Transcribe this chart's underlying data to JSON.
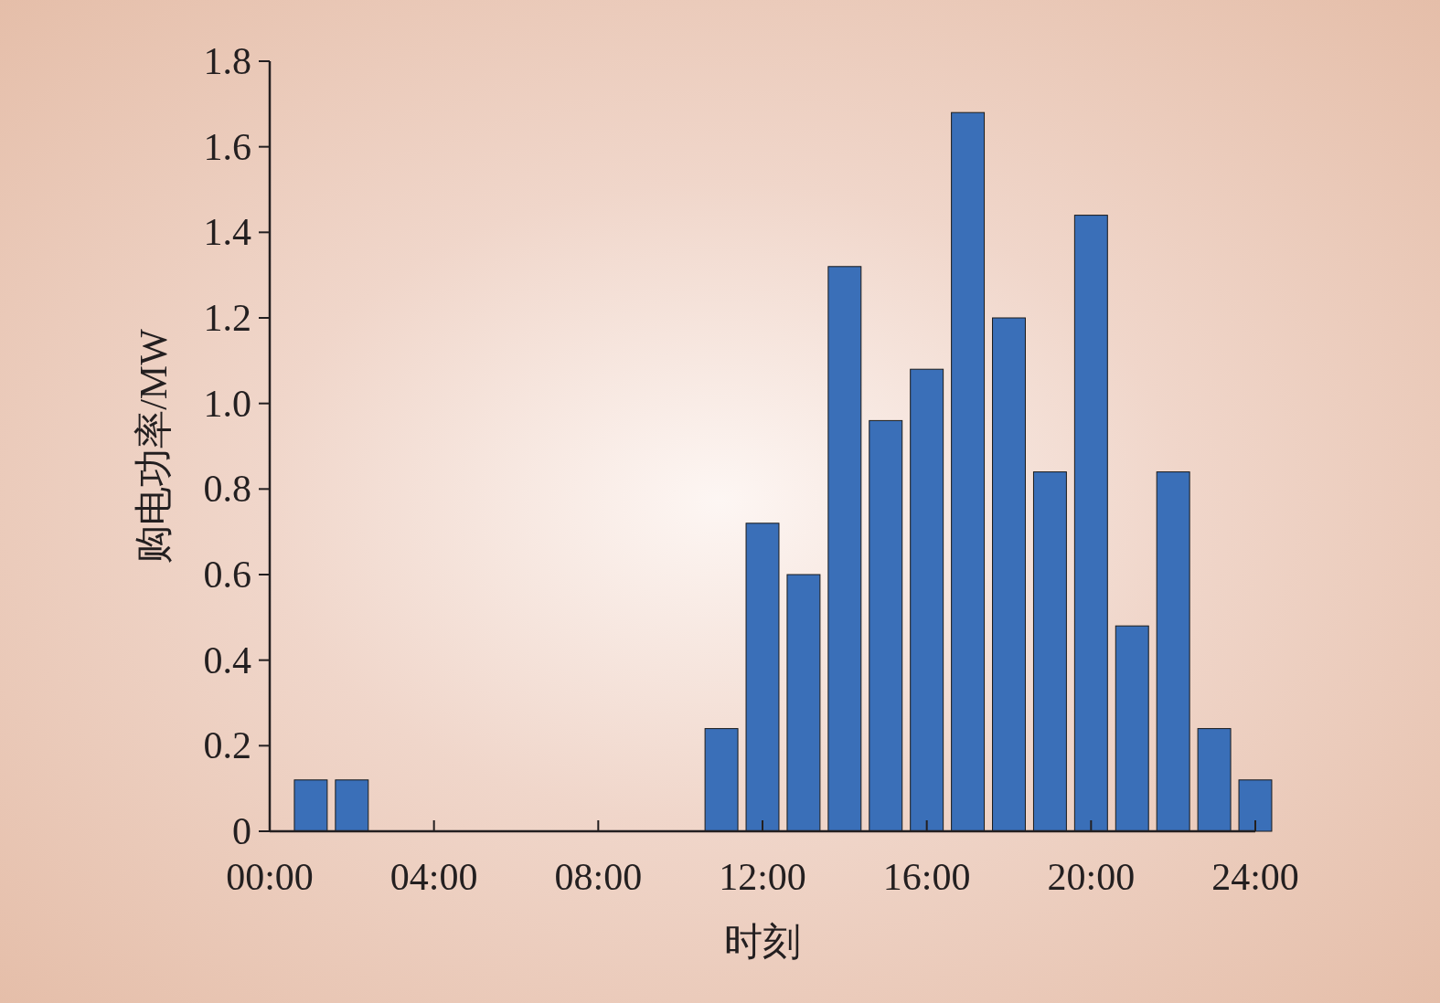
{
  "chart_data": {
    "type": "bar",
    "xlabel": "时刻",
    "ylabel": "购电功率/MW",
    "x": [
      1,
      2,
      3,
      4,
      5,
      6,
      7,
      8,
      9,
      10,
      11,
      12,
      13,
      14,
      15,
      16,
      17,
      18,
      19,
      20,
      21,
      22,
      23,
      24
    ],
    "values": [
      0.12,
      0.12,
      0,
      0,
      0,
      0,
      0,
      0,
      0,
      0,
      0.24,
      0.72,
      0.6,
      1.32,
      0.96,
      1.08,
      1.68,
      1.2,
      0.84,
      1.44,
      0.48,
      0.84,
      0.24,
      0.12
    ],
    "color": "#3a6fb8",
    "xlim": [
      0,
      24
    ],
    "xticks": [
      {
        "value": 0,
        "label": "00:00"
      },
      {
        "value": 4,
        "label": "04:00"
      },
      {
        "value": 8,
        "label": "08:00"
      },
      {
        "value": 12,
        "label": "12:00"
      },
      {
        "value": 16,
        "label": "16:00"
      },
      {
        "value": 20,
        "label": "20:00"
      },
      {
        "value": 24,
        "label": "24:00"
      }
    ],
    "ylim": [
      0,
      1.8
    ],
    "yticks": [
      0,
      0.2,
      0.4,
      0.6,
      0.8,
      {
        "value": 1,
        "label": "1.0"
      },
      1.2,
      1.4,
      1.6,
      1.8
    ]
  }
}
